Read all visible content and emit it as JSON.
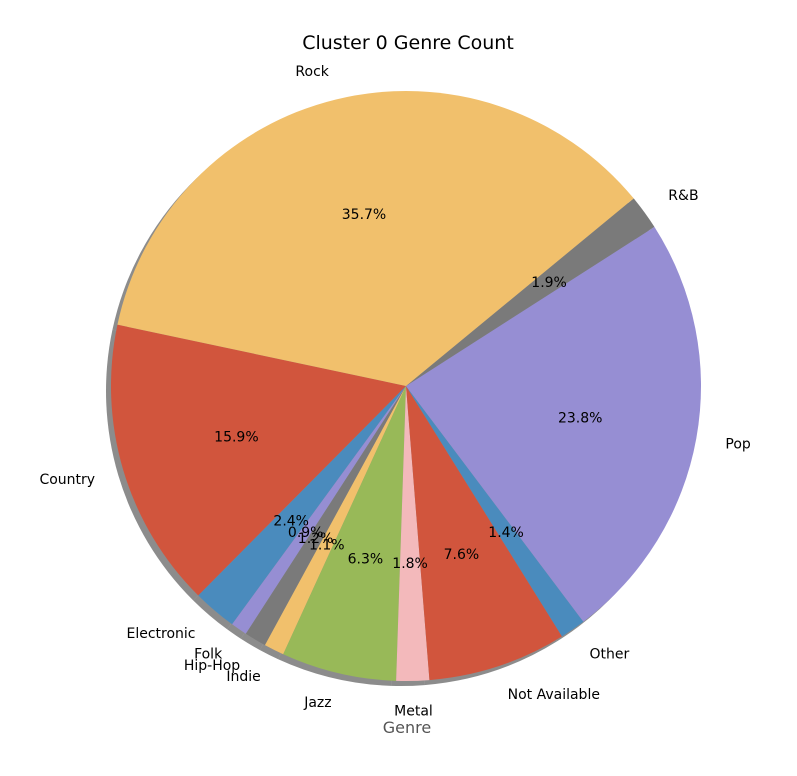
{
  "chart_data": {
    "type": "pie",
    "title": "Cluster 0 Genre Count",
    "xlabel": "Genre",
    "start_angle_deg": 168,
    "direction": "counterclockwise",
    "shadow": true,
    "slices": [
      {
        "label": "Country",
        "value": 15.9,
        "pct_label": "15.9%",
        "color": "#d1553d"
      },
      {
        "label": "Electronic",
        "value": 2.4,
        "pct_label": "2.4%",
        "color": "#4a8bbd"
      },
      {
        "label": "Folk",
        "value": 0.9,
        "pct_label": "0.9%",
        "color": "#968ed3"
      },
      {
        "label": "Hip-Hop",
        "value": 1.2,
        "pct_label": "1.2%",
        "color": "#7a7a7a"
      },
      {
        "label": "Indie",
        "value": 1.1,
        "pct_label": "1.1%",
        "color": "#f1c06c"
      },
      {
        "label": "Jazz",
        "value": 6.3,
        "pct_label": "6.3%",
        "color": "#98b958"
      },
      {
        "label": "Metal",
        "value": 1.8,
        "pct_label": "1.8%",
        "color": "#f3b9bb"
      },
      {
        "label": "Not Available",
        "value": 7.6,
        "pct_label": "7.6%",
        "color": "#d1553d"
      },
      {
        "label": "Other",
        "value": 1.4,
        "pct_label": "1.4%",
        "color": "#4a8bbd"
      },
      {
        "label": "Pop",
        "value": 23.8,
        "pct_label": "23.8%",
        "color": "#968ed3"
      },
      {
        "label": "R&B",
        "value": 1.9,
        "pct_label": "1.9%",
        "color": "#7a7a7a"
      },
      {
        "label": "Rock",
        "value": 35.7,
        "pct_label": "35.7%",
        "color": "#f1c06c"
      }
    ]
  }
}
